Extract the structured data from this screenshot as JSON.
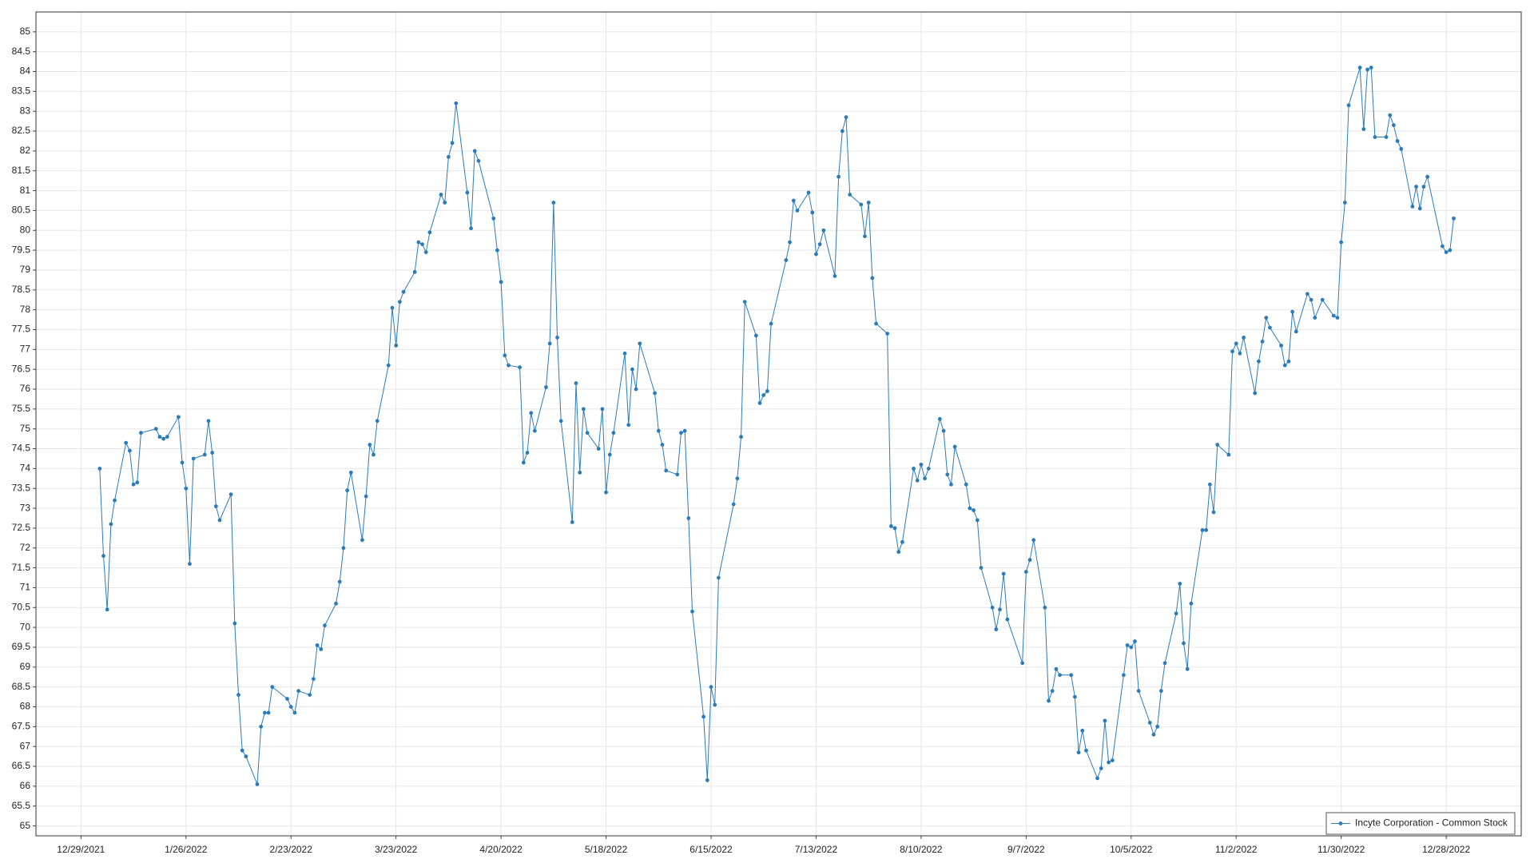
{
  "chart_data": {
    "type": "line",
    "x": [
      "1/3/2022",
      "1/4/2022",
      "1/5/2022",
      "1/6/2022",
      "1/7/2022",
      "1/10/2022",
      "1/11/2022",
      "1/12/2022",
      "1/13/2022",
      "1/14/2022",
      "1/18/2022",
      "1/19/2022",
      "1/20/2022",
      "1/21/2022",
      "1/24/2022",
      "1/25/2022",
      "1/26/2022",
      "1/27/2022",
      "1/28/2022",
      "1/31/2022",
      "2/1/2022",
      "2/2/2022",
      "2/3/2022",
      "2/4/2022",
      "2/7/2022",
      "2/8/2022",
      "2/9/2022",
      "2/10/2022",
      "2/11/2022",
      "2/14/2022",
      "2/15/2022",
      "2/16/2022",
      "2/17/2022",
      "2/18/2022",
      "2/22/2022",
      "2/23/2022",
      "2/24/2022",
      "2/25/2022",
      "2/28/2022",
      "3/1/2022",
      "3/2/2022",
      "3/3/2022",
      "3/4/2022",
      "3/7/2022",
      "3/8/2022",
      "3/9/2022",
      "3/10/2022",
      "3/11/2022",
      "3/14/2022",
      "3/15/2022",
      "3/16/2022",
      "3/17/2022",
      "3/18/2022",
      "3/21/2022",
      "3/22/2022",
      "3/23/2022",
      "3/24/2022",
      "3/25/2022",
      "3/28/2022",
      "3/29/2022",
      "3/30/2022",
      "3/31/2022",
      "4/1/2022",
      "4/4/2022",
      "4/5/2022",
      "4/6/2022",
      "4/7/2022",
      "4/8/2022",
      "4/11/2022",
      "4/12/2022",
      "4/13/2022",
      "4/14/2022",
      "4/18/2022",
      "4/19/2022",
      "4/20/2022",
      "4/21/2022",
      "4/22/2022",
      "4/25/2022",
      "4/26/2022",
      "4/27/2022",
      "4/28/2022",
      "4/29/2022",
      "5/2/2022",
      "5/3/2022",
      "5/4/2022",
      "5/5/2022",
      "5/6/2022",
      "5/9/2022",
      "5/10/2022",
      "5/11/2022",
      "5/12/2022",
      "5/13/2022",
      "5/16/2022",
      "5/17/2022",
      "5/18/2022",
      "5/19/2022",
      "5/20/2022",
      "5/23/2022",
      "5/24/2022",
      "5/25/2022",
      "5/26/2022",
      "5/27/2022",
      "5/31/2022",
      "6/1/2022",
      "6/2/2022",
      "6/3/2022",
      "6/6/2022",
      "6/7/2022",
      "6/8/2022",
      "6/9/2022",
      "6/10/2022",
      "6/13/2022",
      "6/14/2022",
      "6/15/2022",
      "6/16/2022",
      "6/17/2022",
      "6/21/2022",
      "6/22/2022",
      "6/23/2022",
      "6/24/2022",
      "6/27/2022",
      "6/28/2022",
      "6/29/2022",
      "6/30/2022",
      "7/1/2022",
      "7/5/2022",
      "7/6/2022",
      "7/7/2022",
      "7/8/2022",
      "7/11/2022",
      "7/12/2022",
      "7/13/2022",
      "7/14/2022",
      "7/15/2022",
      "7/18/2022",
      "7/19/2022",
      "7/20/2022",
      "7/21/2022",
      "7/22/2022",
      "7/25/2022",
      "7/26/2022",
      "7/27/2022",
      "7/28/2022",
      "7/29/2022",
      "8/1/2022",
      "8/2/2022",
      "8/3/2022",
      "8/4/2022",
      "8/5/2022",
      "8/8/2022",
      "8/9/2022",
      "8/10/2022",
      "8/11/2022",
      "8/12/2022",
      "8/15/2022",
      "8/16/2022",
      "8/17/2022",
      "8/18/2022",
      "8/19/2022",
      "8/22/2022",
      "8/23/2022",
      "8/24/2022",
      "8/25/2022",
      "8/26/2022",
      "8/29/2022",
      "8/30/2022",
      "8/31/2022",
      "9/1/2022",
      "9/2/2022",
      "9/6/2022",
      "9/7/2022",
      "9/8/2022",
      "9/9/2022",
      "9/12/2022",
      "9/13/2022",
      "9/14/2022",
      "9/15/2022",
      "9/16/2022",
      "9/19/2022",
      "9/20/2022",
      "9/21/2022",
      "9/22/2022",
      "9/23/2022",
      "9/26/2022",
      "9/27/2022",
      "9/28/2022",
      "9/29/2022",
      "9/30/2022",
      "10/3/2022",
      "10/4/2022",
      "10/5/2022",
      "10/6/2022",
      "10/7/2022",
      "10/10/2022",
      "10/11/2022",
      "10/12/2022",
      "10/13/2022",
      "10/14/2022",
      "10/17/2022",
      "10/18/2022",
      "10/19/2022",
      "10/20/2022",
      "10/21/2022",
      "10/24/2022",
      "10/25/2022",
      "10/26/2022",
      "10/27/2022",
      "10/28/2022",
      "10/31/2022",
      "11/1/2022",
      "11/2/2022",
      "11/3/2022",
      "11/4/2022",
      "11/7/2022",
      "11/8/2022",
      "11/9/2022",
      "11/10/2022",
      "11/11/2022",
      "11/14/2022",
      "11/15/2022",
      "11/16/2022",
      "11/17/2022",
      "11/18/2022",
      "11/21/2022",
      "11/22/2022",
      "11/23/2022",
      "11/25/2022",
      "11/28/2022",
      "11/29/2022",
      "11/30/2022",
      "12/1/2022",
      "12/2/2022",
      "12/5/2022",
      "12/6/2022",
      "12/7/2022",
      "12/8/2022",
      "12/9/2022",
      "12/12/2022",
      "12/13/2022",
      "12/14/2022",
      "12/15/2022",
      "12/16/2022",
      "12/19/2022",
      "12/20/2022",
      "12/21/2022",
      "12/22/2022",
      "12/23/2022",
      "12/27/2022",
      "12/28/2022",
      "12/29/2022",
      "12/30/2022"
    ],
    "series": [
      {
        "name": "Incyte Corporation - Common Stock",
        "color": "#2b7bb9",
        "values": [
          74.0,
          71.8,
          70.45,
          72.6,
          73.2,
          74.65,
          74.45,
          73.6,
          73.65,
          74.9,
          75.0,
          74.8,
          74.75,
          74.8,
          75.3,
          74.15,
          73.5,
          71.6,
          74.25,
          74.35,
          75.2,
          74.4,
          73.05,
          72.7,
          73.35,
          70.1,
          68.3,
          66.9,
          66.75,
          66.05,
          67.5,
          67.85,
          67.85,
          68.5,
          68.2,
          68.0,
          67.85,
          68.4,
          68.3,
          68.7,
          69.55,
          69.45,
          70.05,
          70.6,
          71.15,
          72.0,
          73.45,
          73.9,
          72.2,
          73.3,
          74.6,
          74.35,
          75.2,
          76.6,
          78.05,
          77.1,
          78.2,
          78.45,
          78.95,
          79.7,
          79.65,
          79.45,
          79.95,
          80.9,
          80.7,
          81.85,
          82.2,
          83.2,
          80.95,
          80.05,
          82.0,
          81.75,
          80.3,
          79.5,
          78.7,
          76.85,
          76.6,
          76.55,
          74.15,
          74.4,
          75.4,
          74.95,
          76.05,
          77.15,
          80.7,
          77.3,
          75.2,
          72.65,
          76.15,
          73.9,
          75.5,
          74.9,
          74.5,
          75.5,
          73.4,
          74.35,
          74.9,
          76.9,
          75.1,
          76.5,
          76.0,
          77.15,
          75.9,
          74.95,
          74.6,
          73.95,
          73.85,
          74.9,
          74.95,
          72.75,
          70.4,
          67.75,
          66.15,
          68.5,
          68.05,
          71.25,
          73.1,
          73.75,
          74.8,
          78.2,
          77.35,
          75.65,
          75.85,
          75.95,
          77.65,
          79.25,
          79.7,
          80.75,
          80.5,
          80.95,
          80.45,
          79.4,
          79.65,
          80.0,
          78.85,
          81.35,
          82.5,
          82.85,
          80.9,
          80.65,
          79.85,
          80.7,
          78.8,
          77.65,
          77.4,
          72.55,
          72.5,
          71.9,
          72.15,
          74.0,
          73.7,
          74.1,
          73.75,
          74.0,
          75.25,
          74.95,
          73.85,
          73.6,
          74.55,
          73.6,
          73.0,
          72.95,
          72.7,
          71.5,
          70.5,
          69.95,
          70.45,
          71.35,
          70.2,
          69.1,
          71.4,
          71.7,
          72.2,
          70.5,
          68.15,
          68.4,
          68.95,
          68.8,
          68.8,
          68.25,
          66.85,
          67.4,
          66.9,
          66.2,
          66.45,
          67.65,
          66.6,
          66.65,
          68.8,
          69.55,
          69.5,
          69.65,
          68.4,
          67.6,
          67.3,
          67.5,
          68.4,
          69.1,
          70.35,
          71.1,
          69.6,
          68.95,
          70.6,
          72.45,
          72.45,
          73.6,
          72.9,
          74.6,
          74.35,
          76.95,
          77.15,
          76.9,
          77.3,
          75.9,
          76.7,
          77.2,
          77.8,
          77.55,
          77.1,
          76.6,
          76.7,
          77.95,
          77.45,
          78.4,
          78.25,
          77.8,
          78.25,
          77.85,
          77.8,
          79.7,
          80.7,
          83.15,
          84.1,
          82.55,
          84.05,
          84.1,
          82.35,
          82.35,
          82.9,
          82.65,
          82.25,
          82.05,
          80.6,
          81.1,
          80.55,
          81.1,
          81.35,
          79.6,
          79.45,
          79.5,
          80.3
        ]
      }
    ],
    "xlim": [
      "12/17/2021",
      "1/17/2023"
    ],
    "xticks": [
      "12/29/2021",
      "1/26/2022",
      "2/23/2022",
      "3/23/2022",
      "4/20/2022",
      "5/18/2022",
      "6/15/2022",
      "7/13/2022",
      "8/10/2022",
      "9/7/2022",
      "10/5/2022",
      "11/2/2022",
      "11/30/2022",
      "12/28/2022"
    ],
    "ylim": [
      64.75,
      85.5
    ],
    "yticks": [
      65,
      65.5,
      66,
      66.5,
      67,
      67.5,
      68,
      68.5,
      69,
      69.5,
      70,
      70.5,
      71,
      71.5,
      72,
      72.5,
      73,
      73.5,
      74,
      74.5,
      75,
      75.5,
      76,
      76.5,
      77,
      77.5,
      78,
      78.5,
      79,
      79.5,
      80,
      80.5,
      81,
      81.5,
      82,
      82.5,
      83,
      83.5,
      84,
      84.5,
      85
    ],
    "grid": true,
    "legend": "lower right"
  }
}
